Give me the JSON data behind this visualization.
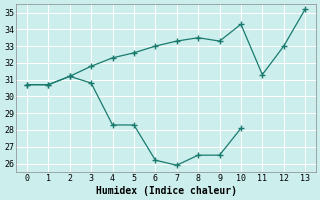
{
  "xlabel": "Humidex (Indice chaleur)",
  "background_color": "#cceeed",
  "grid_color": "#ffffff",
  "line_color": "#1a7a6e",
  "xlim": [
    -0.5,
    13.5
  ],
  "ylim": [
    25.5,
    35.5
  ],
  "xticks": [
    0,
    1,
    2,
    3,
    4,
    5,
    6,
    7,
    8,
    9,
    10,
    11,
    12,
    13
  ],
  "yticks": [
    26,
    27,
    28,
    29,
    30,
    31,
    32,
    33,
    34,
    35
  ],
  "line1_x": [
    0,
    1,
    2,
    3,
    4,
    5,
    6,
    7,
    8,
    9,
    10
  ],
  "line1_y": [
    30.7,
    30.7,
    31.2,
    30.8,
    28.3,
    28.3,
    26.2,
    25.9,
    26.5,
    26.5,
    28.1
  ],
  "line2_x": [
    0,
    1,
    2,
    3,
    4,
    5,
    6,
    7,
    8,
    9,
    10,
    11,
    12,
    13
  ],
  "line2_y": [
    30.7,
    30.7,
    31.2,
    31.8,
    32.3,
    32.6,
    33.0,
    33.3,
    33.5,
    33.3,
    34.3,
    31.3,
    33.0,
    35.2
  ]
}
